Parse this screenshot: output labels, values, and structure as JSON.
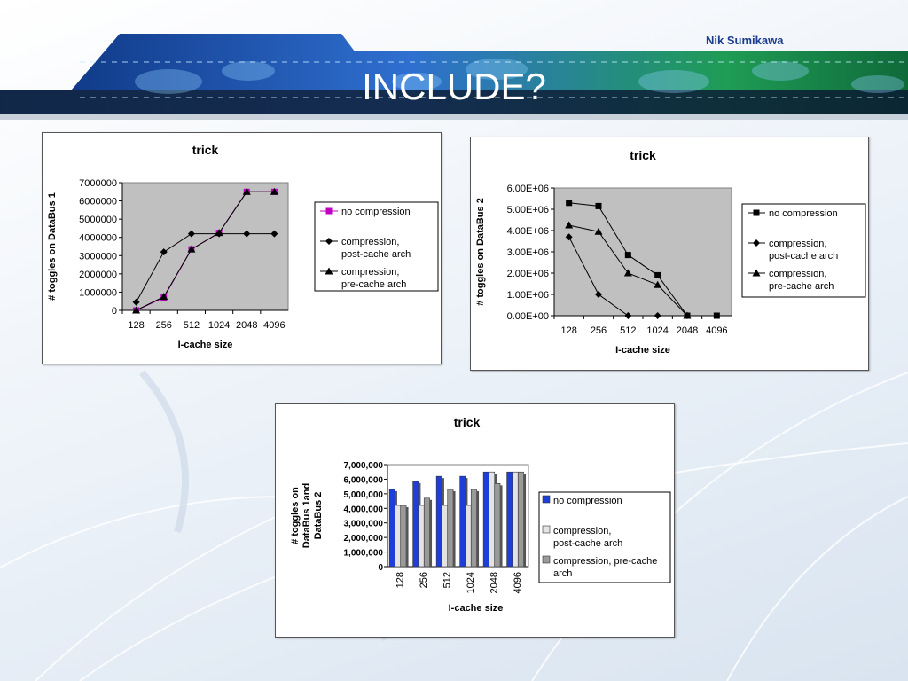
{
  "header": {
    "author": "Nik Sumikawa",
    "title": "INCLUDE?"
  },
  "colors": {
    "banner_dark": "#0b1c3a",
    "banner_blue": "#2f6fd0",
    "banner_green": "#1f9c55",
    "plot_area": "#c0c0c0",
    "series_no_compression": "#c000c0",
    "bar_blue": "#1f3ed8",
    "bar_light": "#e4e4e4",
    "bar_gray": "#9a9a9a"
  },
  "chart_data": [
    {
      "type": "line",
      "title": "trick",
      "xlabel": "I-cache size",
      "ylabel": "# toggles on DataBus 1",
      "categories": [
        "128",
        "256",
        "512",
        "1024",
        "2048",
        "4096"
      ],
      "ylim": [
        0,
        7000000
      ],
      "yticks": [
        0,
        1000000,
        2000000,
        3000000,
        4000000,
        5000000,
        6000000,
        7000000
      ],
      "ytick_labels": [
        "0",
        "1000000",
        "2000000",
        "3000000",
        "4000000",
        "5000000",
        "6000000",
        "7000000"
      ],
      "legend_position": "right",
      "series": [
        {
          "name": "no compression",
          "marker": "square",
          "color": "#c000c0",
          "values": [
            0,
            700000,
            3350000,
            4250000,
            6500000,
            6500000
          ]
        },
        {
          "name": "compression, post-cache arch",
          "marker": "diamond",
          "color": "#000000",
          "values": [
            450000,
            3200000,
            4200000,
            4200000,
            4200000,
            4200000
          ]
        },
        {
          "name": "compression, pre-cache arch",
          "marker": "triangle",
          "color": "#000000",
          "values": [
            0,
            750000,
            3350000,
            4250000,
            6500000,
            6500000
          ]
        }
      ]
    },
    {
      "type": "line",
      "title": "trick",
      "xlabel": "I-cache size",
      "ylabel": "# toggles on DataBus 2",
      "categories": [
        "128",
        "256",
        "512",
        "1024",
        "2048",
        "4096"
      ],
      "ylim": [
        0,
        6000000
      ],
      "yticks": [
        0,
        1000000,
        2000000,
        3000000,
        4000000,
        5000000,
        6000000
      ],
      "ytick_labels": [
        "0.00E+00",
        "1.00E+06",
        "2.00E+06",
        "3.00E+06",
        "4.00E+06",
        "5.00E+06",
        "6.00E+06"
      ],
      "legend_position": "right",
      "series": [
        {
          "name": "no compression",
          "marker": "square",
          "color": "#000000",
          "values": [
            5300000,
            5150000,
            2850000,
            1900000,
            0,
            0
          ]
        },
        {
          "name": "compression, post-cache arch",
          "marker": "diamond",
          "color": "#000000",
          "values": [
            3700000,
            1000000,
            0,
            0,
            0,
            null
          ]
        },
        {
          "name": "compression, pre-cache arch",
          "marker": "triangle",
          "color": "#000000",
          "values": [
            4250000,
            3950000,
            2000000,
            1450000,
            0,
            null
          ]
        }
      ]
    },
    {
      "type": "bar",
      "title": "trick",
      "xlabel": "I-cache size",
      "ylabel": "# toggles on DataBus 1and DataBus 2",
      "categories": [
        "128",
        "256",
        "512",
        "1024",
        "2048",
        "4096"
      ],
      "ylim": [
        0,
        7000000
      ],
      "yticks": [
        0,
        1000000,
        2000000,
        3000000,
        4000000,
        5000000,
        6000000,
        7000000
      ],
      "ytick_labels": [
        "0",
        "1,000,000",
        "2,000,000",
        "3,000,000",
        "4,000,000",
        "5,000,000",
        "6,000,000",
        "7,000,000"
      ],
      "legend_position": "right",
      "series": [
        {
          "name": "no compression",
          "color": "#1f3ed8",
          "values": [
            5300000,
            5850000,
            6200000,
            6200000,
            6500000,
            6500000
          ]
        },
        {
          "name": "compression, post-cache arch",
          "color": "#e4e4e4",
          "values": [
            4200000,
            4200000,
            4200000,
            4200000,
            6500000,
            6500000
          ]
        },
        {
          "name": "compression, pre-cache arch",
          "color": "#9a9a9a",
          "values": [
            4200000,
            4700000,
            5300000,
            5300000,
            5700000,
            6500000
          ]
        }
      ]
    }
  ]
}
